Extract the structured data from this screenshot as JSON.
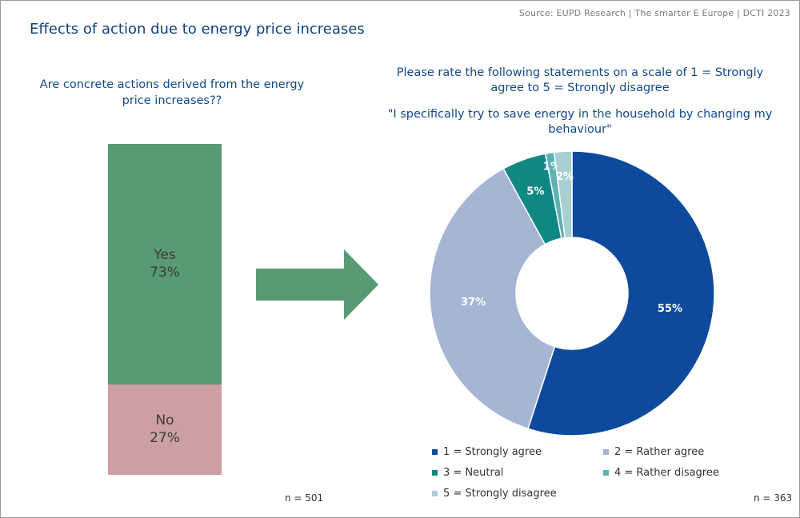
{
  "source": "Source: EUPD Research | The smarter E Europe | DCTI 2023",
  "title": "Effects of action due to energy price increases",
  "left_chart": {
    "question": "Are concrete actions derived from the energy price increases??",
    "n": "n = 501"
  },
  "right_chart": {
    "question": "Please rate the following statements on a scale of 1 = Strongly agree to 5 = Strongly disagree",
    "statement": "\"I specifically try to save energy in the household by changing my behaviour\"",
    "n": "n = 363"
  },
  "colors": {
    "yes": "#589a73",
    "no": "#cd9ea2",
    "arrow": "#589a73"
  },
  "chart_data": [
    {
      "type": "bar",
      "stacked": true,
      "categories": [
        "Yes",
        "No"
      ],
      "values": [
        73,
        27
      ],
      "labels": [
        "73%",
        "27%"
      ],
      "colors": [
        "#589a73",
        "#cd9ea2"
      ]
    },
    {
      "type": "pie",
      "donut": true,
      "categories": [
        "1 = Strongly agree",
        "2 = Rather agree",
        "3 = Neutral",
        "4 = Rather disagree",
        "5 = Strongly disagree"
      ],
      "values": [
        55,
        37,
        5,
        1,
        2
      ],
      "labels": [
        "55%",
        "37%",
        "5%",
        "1%",
        "2%"
      ],
      "colors": [
        "#0d4a9c",
        "#a6b5d3",
        "#0f8884",
        "#5eb1b2",
        "#a9cfd2"
      ],
      "legend_position": "bottom"
    }
  ]
}
